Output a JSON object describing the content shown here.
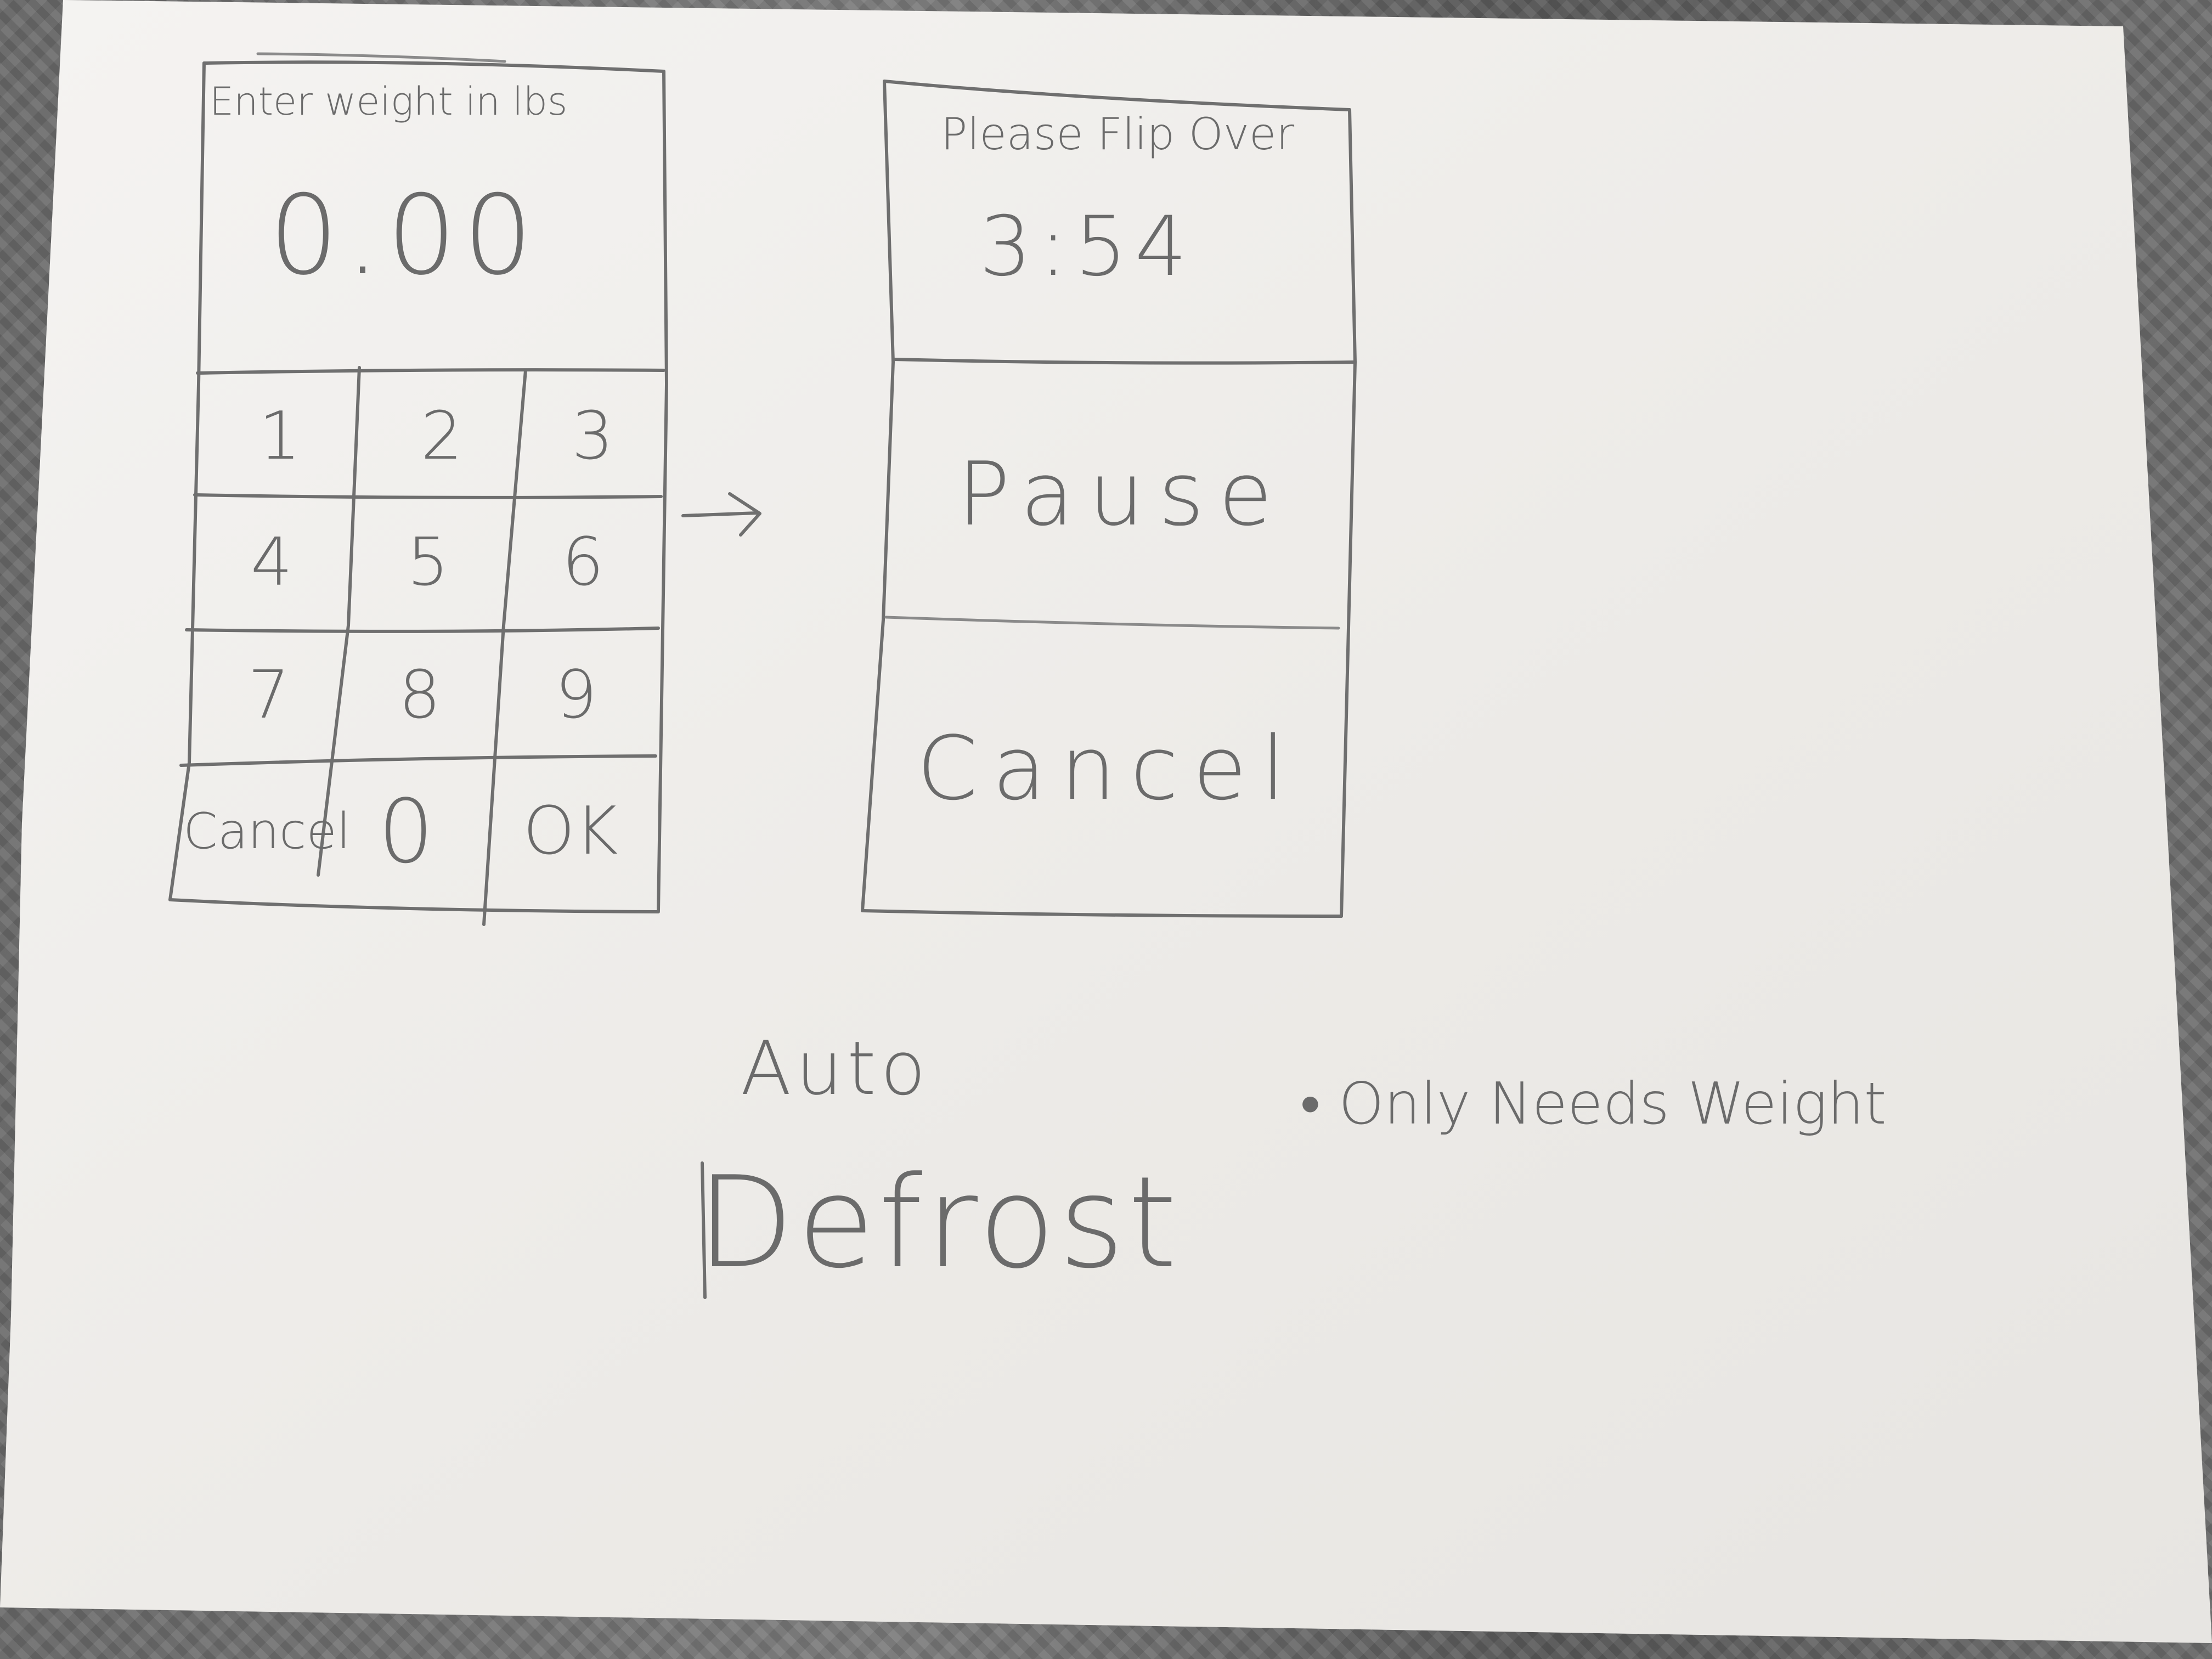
{
  "screen1": {
    "prompt": "Enter weight in lbs",
    "display_value": "0.00",
    "keypad": [
      {
        "label": "1"
      },
      {
        "label": "2"
      },
      {
        "label": "3"
      },
      {
        "label": "4"
      },
      {
        "label": "5"
      },
      {
        "label": "6"
      },
      {
        "label": "7"
      },
      {
        "label": "8"
      },
      {
        "label": "9"
      },
      {
        "label": "Cancel"
      },
      {
        "label": "0"
      },
      {
        "label": "OK"
      }
    ]
  },
  "arrow": "→",
  "screen2": {
    "message": "Please Flip Over",
    "timer": "3:54",
    "pause_label": "Pause",
    "cancel_label": "Cancel"
  },
  "caption": {
    "line1": "Auto",
    "line2": "Defrost"
  },
  "note": "• Only Needs Weight"
}
